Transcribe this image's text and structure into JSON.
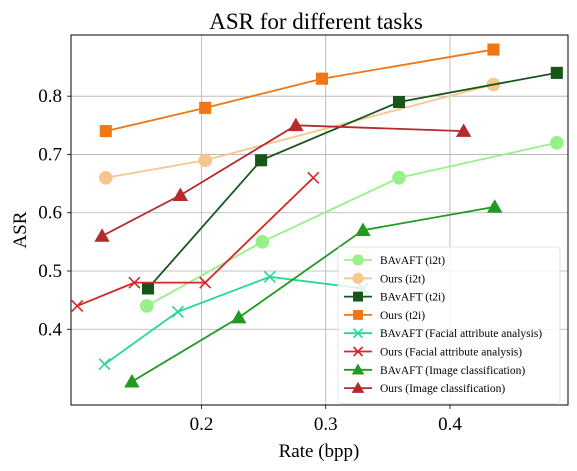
{
  "chart_data": {
    "type": "line",
    "title": "ASR for different tasks",
    "xlabel": "Rate (bpp)",
    "ylabel": "ASR",
    "xlim": [
      0.095,
      0.495
    ],
    "ylim": [
      0.27,
      0.905
    ],
    "xticks": [
      0.2,
      0.3,
      0.4
    ],
    "xtick_labels": [
      "0.2",
      "0.3",
      "0.4"
    ],
    "yticks": [
      0.4,
      0.5,
      0.6,
      0.7,
      0.8
    ],
    "ytick_labels": [
      "0.4",
      "0.5",
      "0.6",
      "0.7",
      "0.8"
    ],
    "grid": true,
    "legend_position": "lower-right",
    "series": [
      {
        "name": "BAvAFT (i2t)",
        "color": "#98f08a",
        "marker": "circle",
        "x": [
          0.156,
          0.249,
          0.359,
          0.486
        ],
        "y": [
          0.44,
          0.55,
          0.66,
          0.72
        ]
      },
      {
        "name": "Ours (i2t)",
        "color": "#f7c68c",
        "marker": "circle",
        "x": [
          0.123,
          0.203,
          0.435
        ],
        "y": [
          0.66,
          0.69,
          0.82
        ]
      },
      {
        "name": "BAvAFT (t2i)",
        "color": "#17561a",
        "marker": "square",
        "x": [
          0.157,
          0.248,
          0.359,
          0.486
        ],
        "y": [
          0.47,
          0.69,
          0.79,
          0.84
        ]
      },
      {
        "name": "Ours (t2i)",
        "color": "#ef7716",
        "marker": "square",
        "x": [
          0.123,
          0.203,
          0.297,
          0.435
        ],
        "y": [
          0.74,
          0.78,
          0.83,
          0.88
        ]
      },
      {
        "name": "BAvAFT (Facial attribute analysis)",
        "color": "#27d696",
        "marker": "x",
        "x": [
          0.122,
          0.181,
          0.255,
          0.33
        ],
        "y": [
          0.34,
          0.43,
          0.49,
          0.47
        ]
      },
      {
        "name": "Ours (Facial attribute analysis)",
        "color": "#d62728",
        "marker": "x",
        "x": [
          0.1,
          0.146,
          0.203,
          0.29
        ],
        "y": [
          0.44,
          0.48,
          0.48,
          0.66
        ]
      },
      {
        "name": "BAvAFT (Image classification)",
        "color": "#219a21",
        "marker": "triangle",
        "x": [
          0.144,
          0.23,
          0.33,
          0.436
        ],
        "y": [
          0.31,
          0.42,
          0.57,
          0.61
        ]
      },
      {
        "name": "Ours (Image classification)",
        "color": "#b22b2d",
        "marker": "triangle",
        "x": [
          0.12,
          0.183,
          0.276,
          0.411
        ],
        "y": [
          0.56,
          0.63,
          0.75,
          0.74
        ]
      }
    ]
  }
}
